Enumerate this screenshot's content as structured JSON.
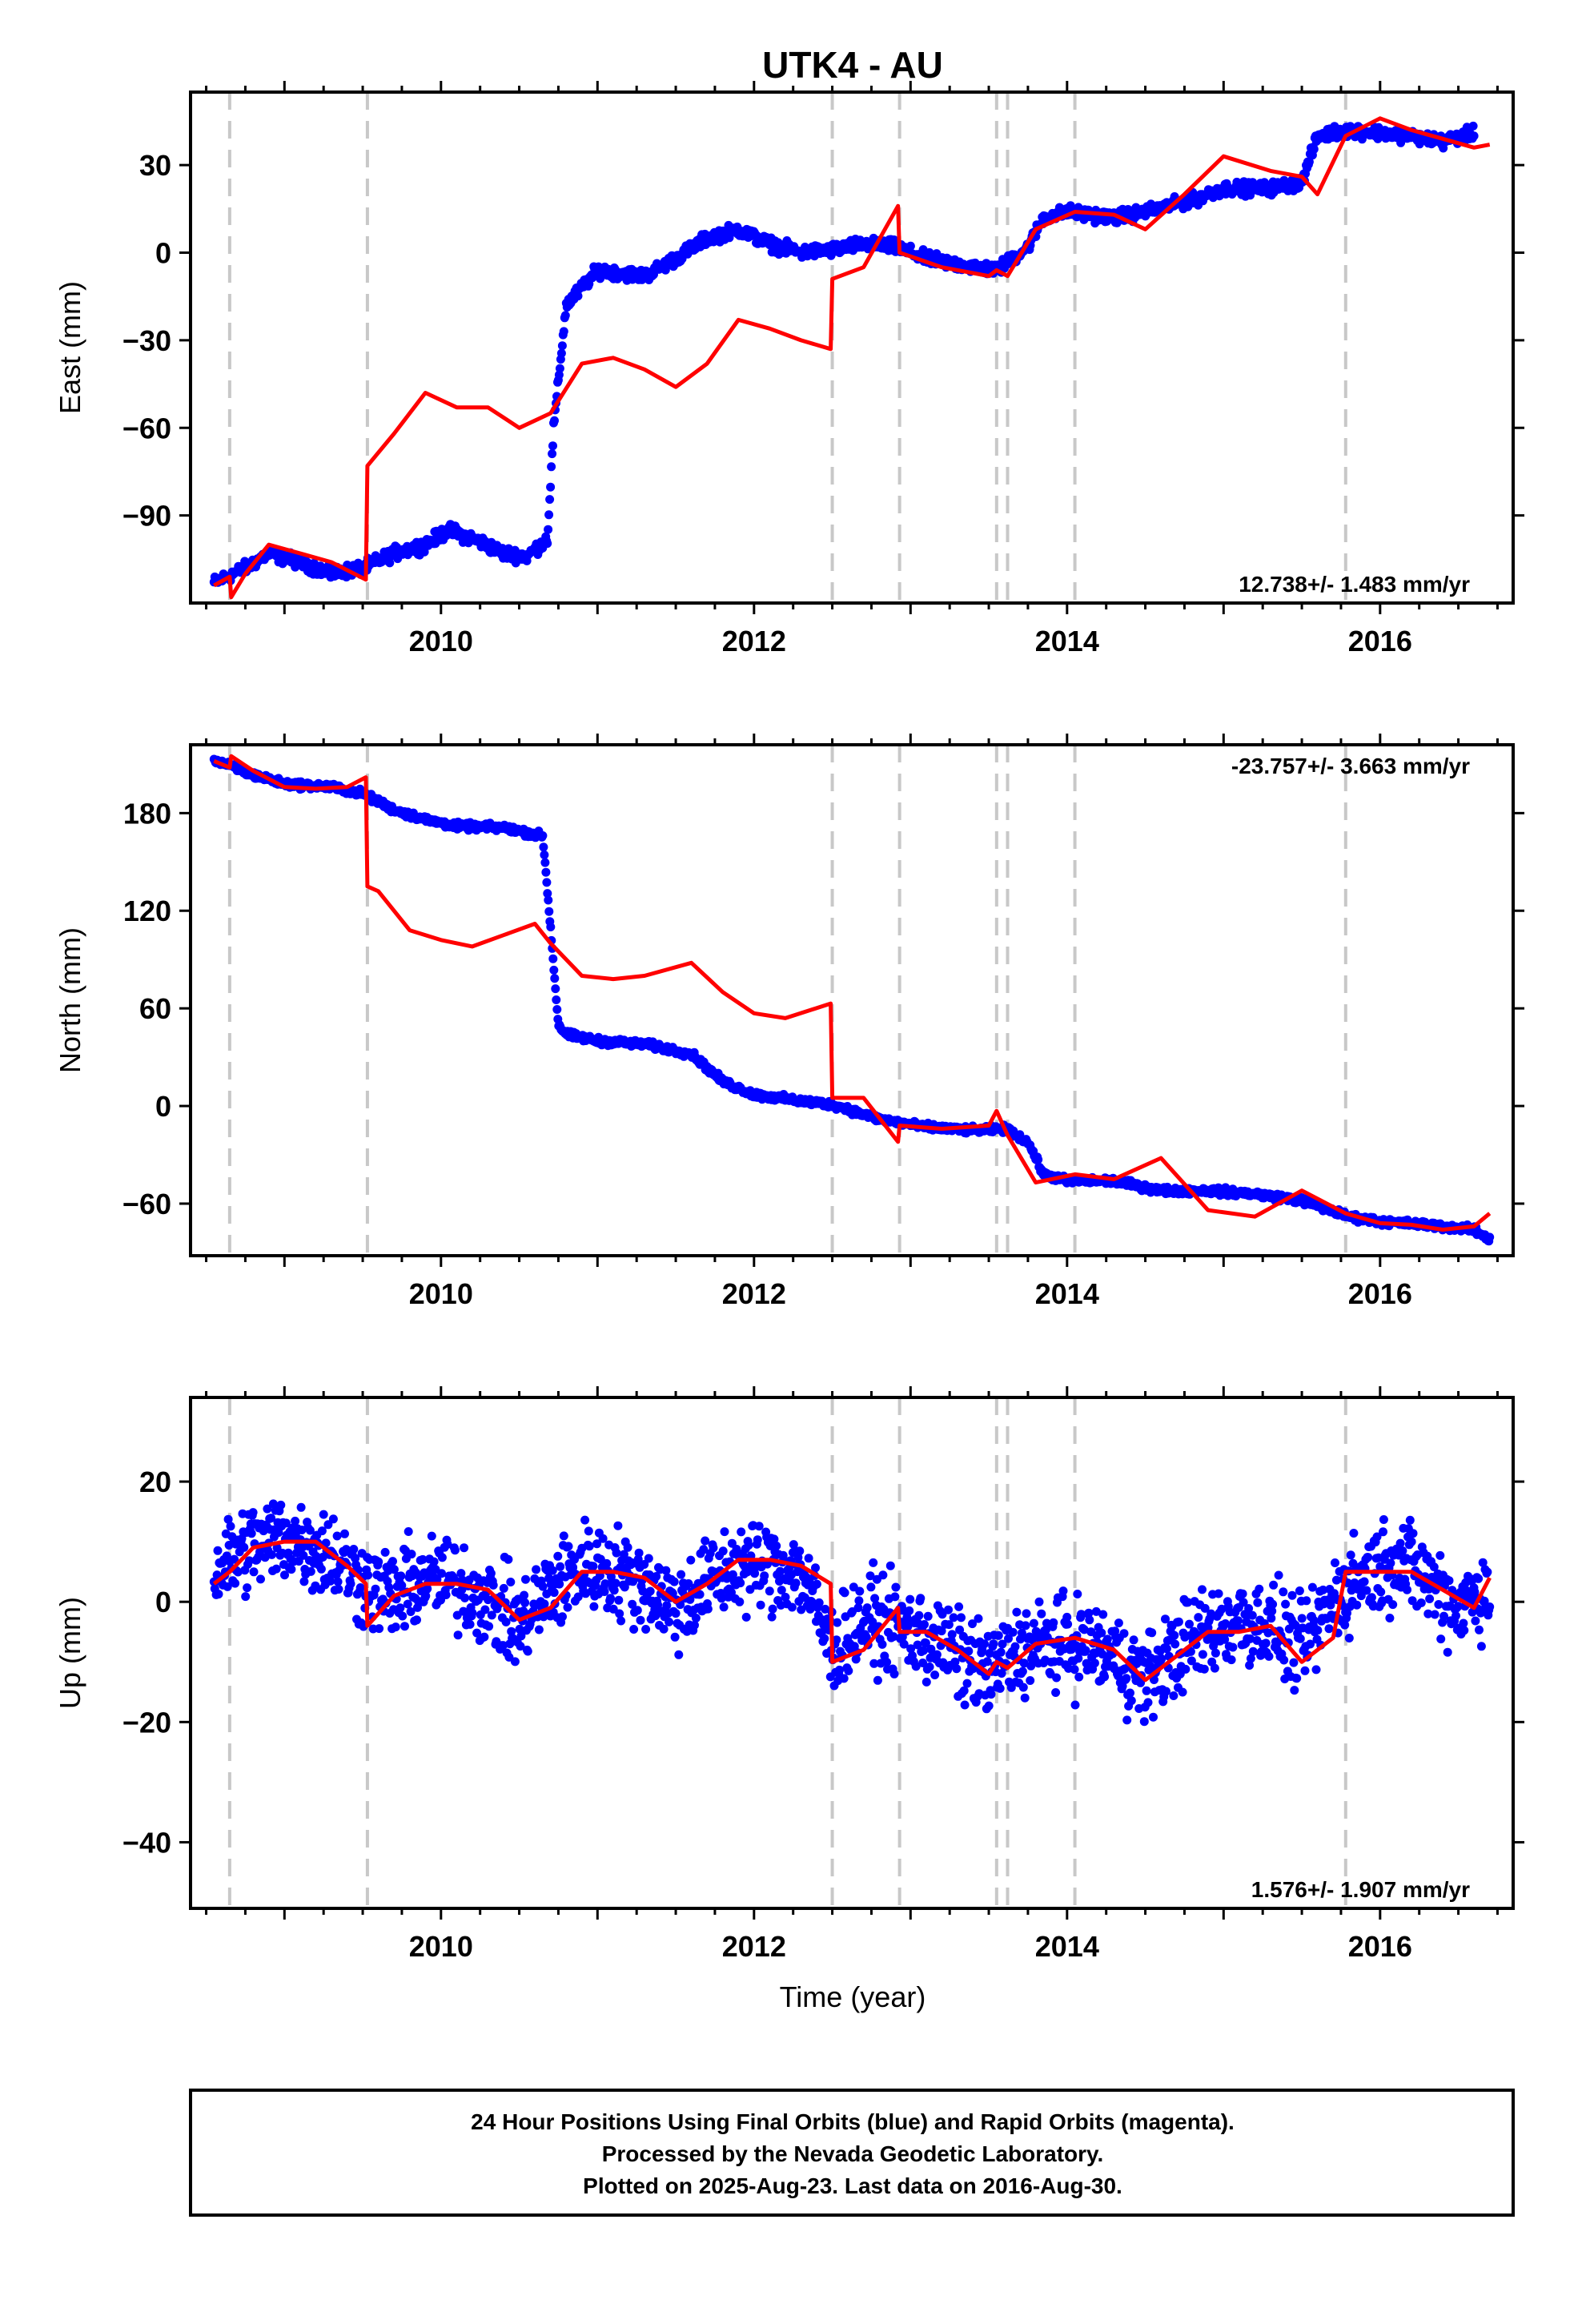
{
  "title": "UTK4 - AU",
  "colors": {
    "final": "#0000ff",
    "rapid": "#ff0000",
    "event_line": "#c8c8c8",
    "frame": "#000000"
  },
  "footer": {
    "line1": "24 Hour Positions Using Final Orbits (blue) and Rapid Orbits (magenta).",
    "line2": "Processed by the Nevada Geodetic Laboratory.",
    "line3": "Plotted on 2025-Aug-23. Last data on 2016-Aug-30."
  },
  "x_axis": {
    "label": "Time (year)",
    "ticks": [
      2010,
      2012,
      2014,
      2016
    ],
    "range": [
      2008.4,
      2016.85
    ]
  },
  "chart_data": [
    {
      "type": "scatter",
      "panel": "east",
      "ylabel": "East (mm)",
      "yticks": [
        30,
        0,
        -30,
        -60,
        -90
      ],
      "ylim": [
        -120,
        55
      ],
      "rate_text": "12.738+/- 1.483 mm/yr",
      "events": [
        2008.65,
        2009.53,
        2012.5,
        2012.93,
        2013.55,
        2013.62,
        2014.05,
        2015.78
      ],
      "series": [
        {
          "name": "",
          "kind": "points",
          "color": "#0000ff",
          "x": [
            2008.55,
            2008.75,
            2008.9,
            2009.1,
            2009.3,
            2009.5,
            2009.7,
            2009.9,
            2010.05,
            2010.25,
            2010.4,
            2010.55,
            2010.68,
            2010.72,
            2010.8,
            2011.0,
            2011.3,
            2011.5,
            2011.7,
            2011.9,
            2012.1,
            2012.3,
            2012.5,
            2012.7,
            2012.9,
            2013.1,
            2013.3,
            2013.55,
            2013.75,
            2013.85,
            2014.0,
            2014.3,
            2014.5,
            2014.8,
            2015.0,
            2015.3,
            2015.5,
            2015.6,
            2015.8,
            2016.0,
            2016.2,
            2016.4,
            2016.6
          ],
          "y": [
            -113,
            -108,
            -103,
            -106,
            -110,
            -108,
            -103,
            -100,
            -95,
            -99,
            -103,
            -104,
            -98,
            -60,
            -18,
            -6,
            -8,
            -2,
            5,
            8,
            3,
            0,
            1,
            3,
            2,
            -2,
            -4,
            -6,
            2,
            12,
            14,
            12,
            14,
            18,
            22,
            22,
            24,
            40,
            42,
            41,
            40,
            38,
            41
          ]
        },
        {
          "name": "",
          "kind": "line",
          "color": "#ff0000",
          "x": [
            2008.55,
            2008.65,
            2008.66,
            2008.75,
            2008.9,
            2009.1,
            2009.3,
            2009.52,
            2009.53,
            2009.7,
            2009.9,
            2010.1,
            2010.3,
            2010.5,
            2010.7,
            2010.9,
            2011.1,
            2011.3,
            2011.5,
            2011.7,
            2011.9,
            2012.1,
            2012.3,
            2012.49,
            2012.5,
            2012.7,
            2012.92,
            2012.93,
            2013.2,
            2013.5,
            2013.55,
            2013.62,
            2013.8,
            2014.05,
            2014.3,
            2014.5,
            2014.75,
            2015.0,
            2015.3,
            2015.5,
            2015.6,
            2015.78,
            2016.0,
            2016.2,
            2016.4,
            2016.6,
            2016.7
          ],
          "y": [
            -114,
            -111,
            -118,
            -110,
            -100,
            -103,
            -106,
            -112,
            -73,
            -62,
            -48,
            -53,
            -53,
            -60,
            -55,
            -38,
            -36,
            -40,
            -46,
            -38,
            -23,
            -26,
            -30,
            -33,
            -9,
            -5,
            16,
            0,
            -5,
            -8,
            -6,
            -8,
            8,
            14,
            13,
            8,
            20,
            33,
            28,
            26,
            20,
            40,
            46,
            42,
            39,
            36,
            37
          ]
        }
      ]
    },
    {
      "type": "scatter",
      "panel": "north",
      "ylabel": "North (mm)",
      "yticks": [
        180,
        120,
        60,
        0,
        -60
      ],
      "ylim": [
        -92,
        222
      ],
      "rate_text": "-23.757+/- 3.663 mm/yr",
      "events": [
        2008.65,
        2009.53,
        2012.5,
        2012.93,
        2013.55,
        2013.62,
        2014.05,
        2015.78
      ],
      "series": [
        {
          "name": "",
          "kind": "points",
          "color": "#0000ff",
          "x": [
            2008.55,
            2008.75,
            2009.0,
            2009.3,
            2009.5,
            2009.7,
            2009.9,
            2010.1,
            2010.4,
            2010.65,
            2010.7,
            2010.75,
            2010.8,
            2011.0,
            2011.3,
            2011.6,
            2011.8,
            2012.0,
            2012.3,
            2012.5,
            2012.8,
            2013.1,
            2013.4,
            2013.6,
            2013.75,
            2013.85,
            2014.0,
            2014.3,
            2014.6,
            2014.9,
            2015.2,
            2015.5,
            2015.8,
            2016.0,
            2016.3,
            2016.6,
            2016.7
          ],
          "y": [
            213,
            205,
            198,
            196,
            192,
            182,
            176,
            172,
            171,
            166,
            110,
            50,
            44,
            40,
            38,
            32,
            15,
            7,
            3,
            1,
            -8,
            -13,
            -15,
            -14,
            -22,
            -42,
            -46,
            -46,
            -52,
            -52,
            -54,
            -58,
            -68,
            -71,
            -73,
            -76,
            -82
          ]
        },
        {
          "name": "",
          "kind": "line",
          "color": "#ff0000",
          "x": [
            2008.55,
            2008.65,
            2008.66,
            2008.8,
            2009.0,
            2009.2,
            2009.4,
            2009.52,
            2009.53,
            2009.6,
            2009.8,
            2010.0,
            2010.2,
            2010.4,
            2010.6,
            2010.7,
            2010.9,
            2011.1,
            2011.3,
            2011.6,
            2011.8,
            2012.0,
            2012.2,
            2012.49,
            2012.5,
            2012.7,
            2012.92,
            2012.93,
            2013.2,
            2013.5,
            2013.55,
            2013.62,
            2013.8,
            2014.05,
            2014.3,
            2014.6,
            2014.9,
            2015.2,
            2015.5,
            2015.78,
            2016.0,
            2016.2,
            2016.4,
            2016.6,
            2016.7
          ],
          "y": [
            212,
            208,
            215,
            206,
            196,
            195,
            196,
            202,
            135,
            132,
            108,
            102,
            98,
            105,
            112,
            100,
            80,
            78,
            80,
            88,
            70,
            57,
            54,
            63,
            5,
            5,
            -22,
            -12,
            -14,
            -12,
            -3,
            -18,
            -47,
            -42,
            -45,
            -32,
            -64,
            -68,
            -52,
            -66,
            -72,
            -73,
            -76,
            -74,
            -66
          ]
        }
      ]
    },
    {
      "type": "scatter",
      "panel": "up",
      "ylabel": "Up (mm)",
      "yticks": [
        20,
        0,
        -20,
        -40
      ],
      "ylim": [
        -51,
        34
      ],
      "rate_text": "1.576+/- 1.907 mm/yr",
      "events": [
        2008.65,
        2009.53,
        2012.5,
        2012.93,
        2013.55,
        2013.62,
        2014.05,
        2015.78
      ],
      "series": [
        {
          "name": "",
          "kind": "points",
          "color": "#0000ff",
          "x": [
            2008.55,
            2008.75,
            2009.0,
            2009.3,
            2009.5,
            2009.7,
            2009.9,
            2010.1,
            2010.3,
            2010.5,
            2010.7,
            2010.9,
            2011.1,
            2011.3,
            2011.5,
            2011.7,
            2011.9,
            2012.1,
            2012.3,
            2012.5,
            2012.7,
            2012.9,
            2013.1,
            2013.3,
            2013.5,
            2013.7,
            2013.9,
            2014.1,
            2014.3,
            2014.5,
            2014.7,
            2014.9,
            2015.1,
            2015.3,
            2015.5,
            2015.7,
            2015.9,
            2016.1,
            2016.3,
            2016.5,
            2016.7
          ],
          "y": [
            5,
            9,
            11,
            8,
            3,
            1,
            4,
            3,
            0,
            -4,
            2,
            6,
            5,
            3,
            -1,
            3,
            6,
            6,
            5,
            -8,
            -3,
            -4,
            -6,
            -9,
            -12,
            -8,
            -7,
            -7,
            -9,
            -13,
            -8,
            -5,
            -3,
            -4,
            -8,
            0,
            5,
            7,
            4,
            -1,
            3
          ]
        },
        {
          "name": "",
          "kind": "line",
          "color": "#ff0000",
          "x": [
            2008.55,
            2008.65,
            2008.8,
            2009.0,
            2009.2,
            2009.4,
            2009.52,
            2009.53,
            2009.7,
            2009.9,
            2010.1,
            2010.3,
            2010.5,
            2010.7,
            2010.9,
            2011.1,
            2011.3,
            2011.5,
            2011.7,
            2011.9,
            2012.1,
            2012.3,
            2012.49,
            2012.5,
            2012.7,
            2012.92,
            2012.93,
            2013.1,
            2013.3,
            2013.5,
            2013.55,
            2013.62,
            2013.8,
            2014.05,
            2014.3,
            2014.5,
            2014.7,
            2014.9,
            2015.1,
            2015.3,
            2015.5,
            2015.7,
            2015.78,
            2016.0,
            2016.2,
            2016.4,
            2016.6,
            2016.7
          ],
          "y": [
            3,
            5,
            9,
            10,
            10,
            6,
            3,
            -4,
            1,
            3,
            3,
            2,
            -3,
            -1,
            5,
            5,
            4,
            0,
            3,
            7,
            7,
            6,
            3,
            -10,
            -8,
            -1,
            -5,
            -5,
            -8,
            -12,
            -10,
            -11,
            -7,
            -6,
            -8,
            -13,
            -9,
            -5,
            -5,
            -4,
            -10,
            -6,
            5,
            5,
            5,
            2,
            -1,
            4
          ]
        }
      ]
    }
  ]
}
